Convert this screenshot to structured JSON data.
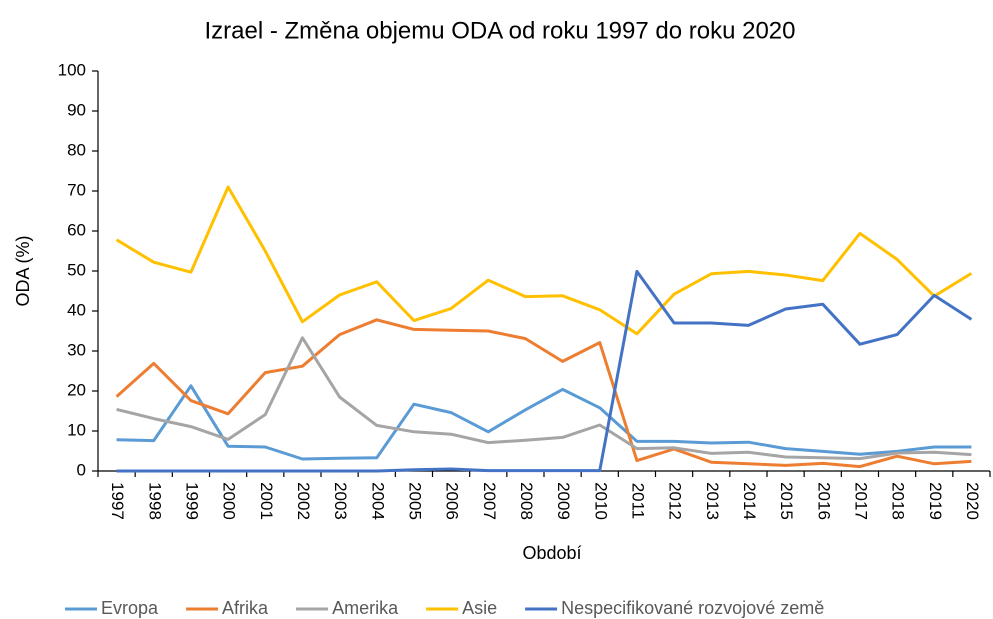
{
  "chart_data": {
    "type": "line",
    "title": "Izrael - Změna objemu ODA od roku 1997 do roku 2020",
    "x_label": "Období",
    "y_label": "ODA  (%)",
    "categories": [
      "1997",
      "1998",
      "1999",
      "2000",
      "2001",
      "2002",
      "2003",
      "2004",
      "2005",
      "2006",
      "2007",
      "2008",
      "2009",
      "2010",
      "2011",
      "2012",
      "2013",
      "2014",
      "2015",
      "2016",
      "2017",
      "2018",
      "2019",
      "2020"
    ],
    "ylim": [
      0,
      100
    ],
    "yticks": [
      0,
      10,
      20,
      30,
      40,
      50,
      60,
      70,
      80,
      90,
      100
    ],
    "grid": false,
    "legend": "bottom",
    "series": [
      {
        "name": "Evropa",
        "color": "#5b9bd5",
        "values": [
          7.8,
          7.6,
          21.3,
          6.2,
          6.0,
          3.0,
          3.2,
          3.3,
          16.7,
          14.6,
          9.8,
          15.3,
          20.4,
          15.8,
          7.4,
          7.4,
          7.0,
          7.2,
          5.6,
          4.9,
          4.2,
          4.9,
          6.0,
          6.0
        ]
      },
      {
        "name": "Afrika",
        "color": "#ed7d31",
        "values": [
          18.6,
          26.9,
          17.6,
          14.3,
          24.6,
          26.2,
          34.1,
          37.8,
          35.4,
          35.2,
          35.0,
          33.1,
          27.4,
          32.1,
          2.6,
          5.5,
          2.2,
          1.8,
          1.4,
          1.9,
          1.1,
          3.7,
          1.8,
          2.4
        ]
      },
      {
        "name": "Amerika",
        "color": "#a5a5a5",
        "values": [
          15.4,
          13.1,
          11.1,
          7.9,
          14.1,
          33.3,
          18.5,
          11.4,
          9.8,
          9.2,
          7.1,
          7.7,
          8.4,
          11.5,
          5.6,
          5.8,
          4.4,
          4.7,
          3.5,
          3.3,
          3.1,
          4.5,
          4.7,
          4.1
        ]
      },
      {
        "name": "Asie",
        "color": "#ffc000",
        "values": [
          57.8,
          52.2,
          49.7,
          71.0,
          55.0,
          37.3,
          44.0,
          47.3,
          37.6,
          40.6,
          47.7,
          43.6,
          43.8,
          40.3,
          34.3,
          44.2,
          49.3,
          49.9,
          49.0,
          47.6,
          59.4,
          52.9,
          43.7,
          49.4
        ]
      },
      {
        "name": "Nespecifikované rozvojové země",
        "color": "#4472c4",
        "values": [
          0,
          0,
          0,
          0,
          0,
          0,
          0,
          0,
          0.3,
          0.5,
          0.1,
          0.1,
          0.1,
          0.1,
          49.9,
          37.0,
          37.0,
          36.4,
          40.5,
          41.7,
          31.7,
          34.1,
          43.9,
          37.9
        ]
      }
    ]
  }
}
